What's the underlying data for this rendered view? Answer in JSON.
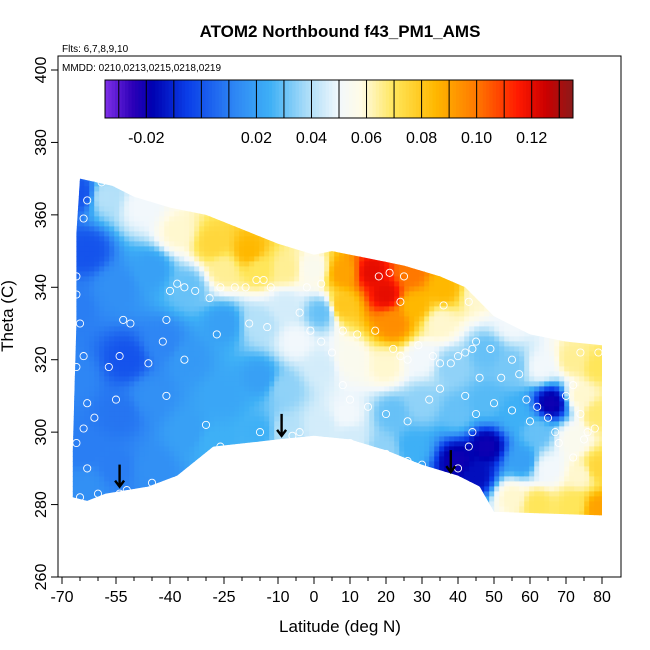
{
  "chart_data": {
    "type": "heatmap",
    "title": "ATOM2 Northbound f43_PM1_AMS",
    "notes": [
      "Flts: 6,7,8,9,10",
      "MMDD: 0210,0213,0215,0218,0219"
    ],
    "xlabel": "Latitude (deg N)",
    "ylabel": "Theta (C)",
    "xlim": [
      -70,
      85
    ],
    "ylim": [
      260,
      400
    ],
    "x_ticks": [
      -70,
      -55,
      -40,
      -25,
      -10,
      0,
      10,
      20,
      30,
      40,
      50,
      60,
      70,
      80
    ],
    "x_tick_labels": [
      "-70",
      "-55",
      "-40",
      "-25",
      "-10",
      "0",
      "10",
      "20",
      "30",
      "40",
      "50",
      "60",
      "70",
      "80"
    ],
    "x_minor_ticks": [
      -65,
      -60,
      -50,
      -45,
      -35,
      -30,
      -20,
      -15,
      -5,
      5,
      15,
      25,
      35,
      45,
      55,
      65,
      75
    ],
    "y_ticks": [
      260,
      280,
      300,
      320,
      340,
      360,
      380,
      400
    ],
    "y_tick_labels": [
      "260",
      "280",
      "300",
      "320",
      "340",
      "360",
      "380",
      "400"
    ],
    "colorbar": {
      "range": [
        -0.035,
        0.135
      ],
      "tick_values": [
        -0.02,
        0.02,
        0.04,
        0.06,
        0.08,
        0.1,
        0.12
      ],
      "tick_labels": [
        "-0.02",
        "0.02",
        "0.04",
        "0.06",
        "0.08",
        "0.10",
        "0.12"
      ],
      "divisions": [
        -0.03,
        -0.02,
        -0.01,
        0.0,
        0.01,
        0.02,
        0.03,
        0.04,
        0.05,
        0.06,
        0.07,
        0.08,
        0.09,
        0.1,
        0.11,
        0.12,
        0.13
      ],
      "stops": [
        {
          "v": -0.035,
          "color": "#7f2fe8"
        },
        {
          "v": -0.025,
          "color": "#2d00b8"
        },
        {
          "v": -0.018,
          "color": "#0000b0"
        },
        {
          "v": -0.005,
          "color": "#0a3ee8"
        },
        {
          "v": 0.012,
          "color": "#2e86f4"
        },
        {
          "v": 0.025,
          "color": "#3eb0f6"
        },
        {
          "v": 0.038,
          "color": "#a8dcf8"
        },
        {
          "v": 0.05,
          "color": "#f2f8fc"
        },
        {
          "v": 0.058,
          "color": "#fffbe6"
        },
        {
          "v": 0.07,
          "color": "#ffe65a"
        },
        {
          "v": 0.085,
          "color": "#ffb800"
        },
        {
          "v": 0.1,
          "color": "#ff7800"
        },
        {
          "v": 0.115,
          "color": "#ff1a00"
        },
        {
          "v": 0.125,
          "color": "#cc0000"
        },
        {
          "v": 0.135,
          "color": "#8b1a1a"
        }
      ]
    },
    "field_points": [
      [
        -65,
        366,
        0.0
      ],
      [
        -63,
        350,
        0.0
      ],
      [
        -67,
        335,
        0.01
      ],
      [
        -66,
        315,
        0.012
      ],
      [
        -64,
        295,
        0.01
      ],
      [
        -63,
        285,
        0.015
      ],
      [
        -58,
        365,
        0.04
      ],
      [
        -55,
        340,
        0.015
      ],
      [
        -52,
        320,
        0.0
      ],
      [
        -54,
        305,
        0.008
      ],
      [
        -55,
        290,
        0.01
      ],
      [
        -48,
        362,
        0.05
      ],
      [
        -45,
        345,
        0.02
      ],
      [
        -42,
        325,
        0.012
      ],
      [
        -45,
        310,
        0.015
      ],
      [
        -45,
        290,
        0.015
      ],
      [
        -38,
        355,
        0.06
      ],
      [
        -35,
        340,
        0.03
      ],
      [
        -35,
        320,
        0.018
      ],
      [
        -35,
        300,
        0.02
      ],
      [
        -28,
        352,
        0.075
      ],
      [
        -25,
        345,
        0.065
      ],
      [
        -25,
        330,
        0.02
      ],
      [
        -25,
        310,
        0.022
      ],
      [
        -28,
        297,
        0.025
      ],
      [
        -18,
        350,
        0.085
      ],
      [
        -15,
        345,
        0.07
      ],
      [
        -15,
        330,
        0.04
      ],
      [
        -15,
        315,
        0.02
      ],
      [
        -15,
        300,
        0.025
      ],
      [
        -8,
        345,
        0.065
      ],
      [
        -8,
        335,
        0.045
      ],
      [
        -5,
        325,
        0.05
      ],
      [
        -8,
        312,
        0.035
      ],
      [
        -8,
        300,
        0.04
      ],
      [
        0,
        345,
        0.055
      ],
      [
        2,
        333,
        0.03
      ],
      [
        2,
        318,
        0.045
      ],
      [
        2,
        302,
        0.045
      ],
      [
        8,
        344,
        0.09
      ],
      [
        8,
        335,
        0.08
      ],
      [
        10,
        320,
        0.055
      ],
      [
        9,
        305,
        0.05
      ],
      [
        10,
        298,
        0.045
      ],
      [
        16,
        344,
        0.12
      ],
      [
        20,
        338,
        0.12
      ],
      [
        22,
        330,
        0.095
      ],
      [
        20,
        318,
        0.06
      ],
      [
        22,
        305,
        0.03
      ],
      [
        20,
        295,
        0.035
      ],
      [
        27,
        344,
        0.1
      ],
      [
        28,
        335,
        0.085
      ],
      [
        30,
        320,
        0.05
      ],
      [
        30,
        308,
        0.035
      ],
      [
        27,
        296,
        0.025
      ],
      [
        36,
        340,
        0.085
      ],
      [
        35,
        330,
        0.06
      ],
      [
        38,
        318,
        0.035
      ],
      [
        40,
        305,
        0.03
      ],
      [
        40,
        292,
        -0.02
      ],
      [
        46,
        338,
        0.06
      ],
      [
        48,
        322,
        0.03
      ],
      [
        48,
        308,
        0.028
      ],
      [
        48,
        296,
        -0.02
      ],
      [
        45,
        288,
        -0.015
      ],
      [
        55,
        330,
        0.05
      ],
      [
        55,
        318,
        0.032
      ],
      [
        56,
        305,
        0.025
      ],
      [
        58,
        292,
        0.02
      ],
      [
        55,
        282,
        0.06
      ],
      [
        63,
        318,
        0.05
      ],
      [
        66,
        308,
        -0.02
      ],
      [
        62,
        300,
        0.03
      ],
      [
        65,
        290,
        0.05
      ],
      [
        62,
        280,
        0.07
      ],
      [
        72,
        320,
        0.065
      ],
      [
        74,
        310,
        0.06
      ],
      [
        72,
        298,
        0.055
      ],
      [
        74,
        288,
        0.06
      ],
      [
        72,
        280,
        0.07
      ],
      [
        79,
        318,
        0.07
      ],
      [
        79,
        305,
        0.068
      ],
      [
        79,
        290,
        0.075
      ],
      [
        79,
        279,
        0.09
      ]
    ],
    "domain_outline": [
      [
        -65,
        370
      ],
      [
        -56,
        368
      ],
      [
        -50,
        365
      ],
      [
        -40,
        362
      ],
      [
        -30,
        360
      ],
      [
        -20,
        356
      ],
      [
        -10,
        352
      ],
      [
        0,
        349
      ],
      [
        5,
        350
      ],
      [
        15,
        348
      ],
      [
        25,
        346
      ],
      [
        35,
        343
      ],
      [
        42,
        340
      ],
      [
        50,
        332
      ],
      [
        60,
        327
      ],
      [
        70,
        325
      ],
      [
        80,
        324
      ],
      [
        80,
        277
      ],
      [
        50,
        278
      ],
      [
        46,
        285
      ],
      [
        40,
        288
      ],
      [
        30,
        291
      ],
      [
        20,
        295
      ],
      [
        10,
        298
      ],
      [
        0,
        299
      ],
      [
        -10,
        298
      ],
      [
        -28,
        296
      ],
      [
        -38,
        288
      ],
      [
        -46,
        285
      ],
      [
        -58,
        283
      ],
      [
        -63,
        281
      ],
      [
        -67,
        282
      ],
      [
        -67,
        295
      ],
      [
        -66,
        330
      ],
      [
        -66,
        355
      ],
      [
        -65,
        370
      ]
    ],
    "observations": [
      [
        -59,
        369
      ],
      [
        -63,
        364
      ],
      [
        -64,
        359
      ],
      [
        -66,
        343
      ],
      [
        -66,
        338
      ],
      [
        -65,
        330
      ],
      [
        -64,
        321
      ],
      [
        -66,
        318
      ],
      [
        -63,
        308
      ],
      [
        -61,
        304
      ],
      [
        -64,
        301
      ],
      [
        -66,
        297
      ],
      [
        -63,
        290
      ],
      [
        -60,
        283
      ],
      [
        -65,
        282
      ],
      [
        -53,
        331
      ],
      [
        -51,
        330
      ],
      [
        -54,
        321
      ],
      [
        -46,
        319
      ],
      [
        -42,
        325
      ],
      [
        -41,
        331
      ],
      [
        -40,
        339
      ],
      [
        -38,
        341
      ],
      [
        -36,
        340
      ],
      [
        -33,
        339
      ],
      [
        -29,
        337
      ],
      [
        -26,
        340
      ],
      [
        -22,
        340
      ],
      [
        -19,
        340
      ],
      [
        -16,
        342
      ],
      [
        -14,
        342
      ],
      [
        -12,
        340
      ],
      [
        -27,
        327
      ],
      [
        -36,
        320
      ],
      [
        -18,
        330
      ],
      [
        -13,
        329
      ],
      [
        -2,
        340
      ],
      [
        2,
        341
      ],
      [
        -4,
        333
      ],
      [
        -1,
        328
      ],
      [
        2,
        325
      ],
      [
        5,
        322
      ],
      [
        8,
        328
      ],
      [
        12,
        327
      ],
      [
        17,
        328
      ],
      [
        18,
        343
      ],
      [
        21,
        344
      ],
      [
        25,
        343
      ],
      [
        24,
        336
      ],
      [
        22,
        323
      ],
      [
        24,
        321
      ],
      [
        26,
        320
      ],
      [
        29,
        324
      ],
      [
        33,
        321
      ],
      [
        35,
        319
      ],
      [
        38,
        319
      ],
      [
        40,
        321
      ],
      [
        42,
        322
      ],
      [
        44,
        323
      ],
      [
        45,
        325
      ],
      [
        49,
        323
      ],
      [
        52,
        315
      ],
      [
        55,
        320
      ],
      [
        57,
        316
      ],
      [
        59,
        309
      ],
      [
        62,
        307
      ],
      [
        65,
        304
      ],
      [
        67,
        300
      ],
      [
        68,
        297
      ],
      [
        70,
        310
      ],
      [
        72,
        313
      ],
      [
        74,
        305
      ],
      [
        75,
        298
      ],
      [
        78,
        301
      ],
      [
        72,
        293
      ],
      [
        76,
        300
      ],
      [
        79,
        322
      ],
      [
        74,
        322
      ],
      [
        36,
        335
      ],
      [
        43,
        336
      ],
      [
        46,
        315
      ],
      [
        45,
        305
      ],
      [
        44,
        300
      ],
      [
        43,
        296
      ],
      [
        40,
        290
      ],
      [
        30,
        291
      ],
      [
        26,
        292
      ],
      [
        20,
        294
      ],
      [
        10,
        297
      ],
      [
        6,
        296
      ],
      [
        -6,
        299
      ],
      [
        -4,
        300
      ],
      [
        -15,
        300
      ],
      [
        -26,
        296
      ],
      [
        -30,
        302
      ],
      [
        -45,
        286
      ],
      [
        -54,
        283
      ],
      [
        -52,
        284
      ],
      [
        -41,
        310
      ],
      [
        8,
        313
      ],
      [
        10,
        309
      ],
      [
        15,
        307
      ],
      [
        20,
        305
      ],
      [
        26,
        303
      ],
      [
        32,
        309
      ],
      [
        35,
        312
      ],
      [
        42,
        310
      ],
      [
        50,
        308
      ],
      [
        55,
        306
      ],
      [
        60,
        303
      ],
      [
        -57,
        318
      ],
      [
        -55,
        309
      ]
    ],
    "arrows": [
      [
        -54,
        288
      ],
      [
        -9,
        302
      ],
      [
        38,
        292
      ]
    ]
  }
}
